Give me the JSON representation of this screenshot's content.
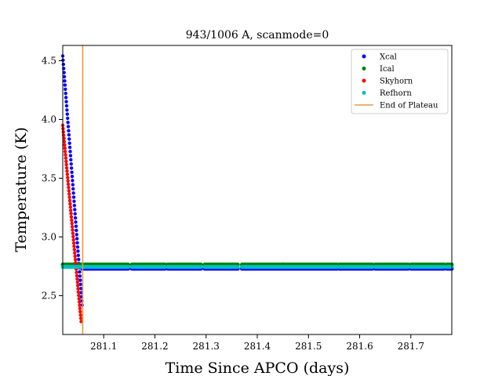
{
  "chart_data": {
    "type": "scatter",
    "title": "943/1006 A, scanmode=0",
    "xlabel": "Time Since APCO (days)",
    "ylabel": "Temperature (K)",
    "xlim": [
      281.02,
      281.78
    ],
    "ylim": [
      2.17,
      4.63
    ],
    "xticks": [
      281.1,
      281.2,
      281.3,
      281.4,
      281.5,
      281.6,
      281.7
    ],
    "yticks": [
      2.5,
      3.0,
      3.5,
      4.0,
      4.5
    ],
    "xtick_labels": [
      "281.1",
      "281.2",
      "281.3",
      "281.4",
      "281.5",
      "281.6",
      "281.7"
    ],
    "ytick_labels": [
      "2.5",
      "3.0",
      "3.5",
      "4.0",
      "4.5"
    ],
    "grid": false,
    "legend_position": "top-right",
    "series": [
      {
        "name": "Xcal",
        "color": "#0000ff",
        "marker": "dot",
        "segments": [
          {
            "kind": "decay",
            "x": [
              281.02,
              281.058
            ],
            "y": [
              4.54,
              2.42
            ]
          },
          {
            "kind": "plateau",
            "x": [
              281.058,
              281.078
            ],
            "y": 2.73
          },
          {
            "kind": "plateau",
            "x": [
              281.08,
              281.148
            ],
            "y": 2.73
          },
          {
            "kind": "plateau",
            "x": [
              281.155,
              281.22
            ],
            "y": 2.73
          },
          {
            "kind": "plateau",
            "x": [
              281.225,
              281.29
            ],
            "y": 2.73
          },
          {
            "kind": "plateau",
            "x": [
              281.297,
              281.362
            ],
            "y": 2.73
          },
          {
            "kind": "plateau",
            "x": [
              281.37,
              281.45
            ],
            "y": 2.73
          },
          {
            "kind": "plateau",
            "x": [
              281.45,
              281.556
            ],
            "y": 2.73
          },
          {
            "kind": "plateau",
            "x": [
              281.56,
              281.625
            ],
            "y": 2.73
          },
          {
            "kind": "plateau",
            "x": [
              281.63,
              281.695
            ],
            "y": 2.73
          },
          {
            "kind": "plateau",
            "x": [
              281.7,
              281.765
            ],
            "y": 2.73
          },
          {
            "kind": "plateau",
            "x": [
              281.77,
              281.78
            ],
            "y": 2.73
          }
        ]
      },
      {
        "name": "Ical",
        "color": "#008000",
        "marker": "dot",
        "segments": [
          {
            "kind": "plateau",
            "x": [
              281.02,
              281.078
            ],
            "y": 2.765
          },
          {
            "kind": "plateau",
            "x": [
              281.08,
              281.148
            ],
            "y": 2.765
          },
          {
            "kind": "plateau",
            "x": [
              281.155,
              281.22
            ],
            "y": 2.765
          },
          {
            "kind": "plateau",
            "x": [
              281.225,
              281.29
            ],
            "y": 2.765
          },
          {
            "kind": "plateau",
            "x": [
              281.297,
              281.362
            ],
            "y": 2.765
          },
          {
            "kind": "plateau",
            "x": [
              281.37,
              281.45
            ],
            "y": 2.765
          },
          {
            "kind": "plateau",
            "x": [
              281.45,
              281.556
            ],
            "y": 2.765
          },
          {
            "kind": "plateau",
            "x": [
              281.56,
              281.625
            ],
            "y": 2.765
          },
          {
            "kind": "plateau",
            "x": [
              281.63,
              281.695
            ],
            "y": 2.765
          },
          {
            "kind": "plateau",
            "x": [
              281.7,
              281.765
            ],
            "y": 2.765
          },
          {
            "kind": "plateau",
            "x": [
              281.77,
              281.78
            ],
            "y": 2.765
          }
        ]
      },
      {
        "name": "Skyhorn",
        "color": "#ff0000",
        "marker": "dot",
        "segments": [
          {
            "kind": "decay",
            "x": [
              281.02,
              281.056
            ],
            "y": [
              3.95,
              2.28
            ]
          }
        ]
      },
      {
        "name": "Refhorn",
        "color": "#00bfbf",
        "marker": "dot",
        "segments": [
          {
            "kind": "plateau",
            "x": [
              281.02,
              281.078
            ],
            "y": 2.745
          },
          {
            "kind": "plateau",
            "x": [
              281.08,
              281.148
            ],
            "y": 2.745
          },
          {
            "kind": "plateau",
            "x": [
              281.155,
              281.22
            ],
            "y": 2.745
          },
          {
            "kind": "plateau",
            "x": [
              281.225,
              281.29
            ],
            "y": 2.745
          },
          {
            "kind": "plateau",
            "x": [
              281.297,
              281.362
            ],
            "y": 2.745
          },
          {
            "kind": "plateau",
            "x": [
              281.37,
              281.45
            ],
            "y": 2.745
          },
          {
            "kind": "plateau",
            "x": [
              281.45,
              281.556
            ],
            "y": 2.745
          },
          {
            "kind": "plateau",
            "x": [
              281.56,
              281.625
            ],
            "y": 2.745
          },
          {
            "kind": "plateau",
            "x": [
              281.63,
              281.695
            ],
            "y": 2.745
          },
          {
            "kind": "plateau",
            "x": [
              281.7,
              281.765
            ],
            "y": 2.745
          },
          {
            "kind": "plateau",
            "x": [
              281.77,
              281.78
            ],
            "y": 2.745
          }
        ]
      }
    ],
    "vline": {
      "name": "End of Plateau",
      "x": 281.059,
      "color": "#e69a3c"
    }
  }
}
